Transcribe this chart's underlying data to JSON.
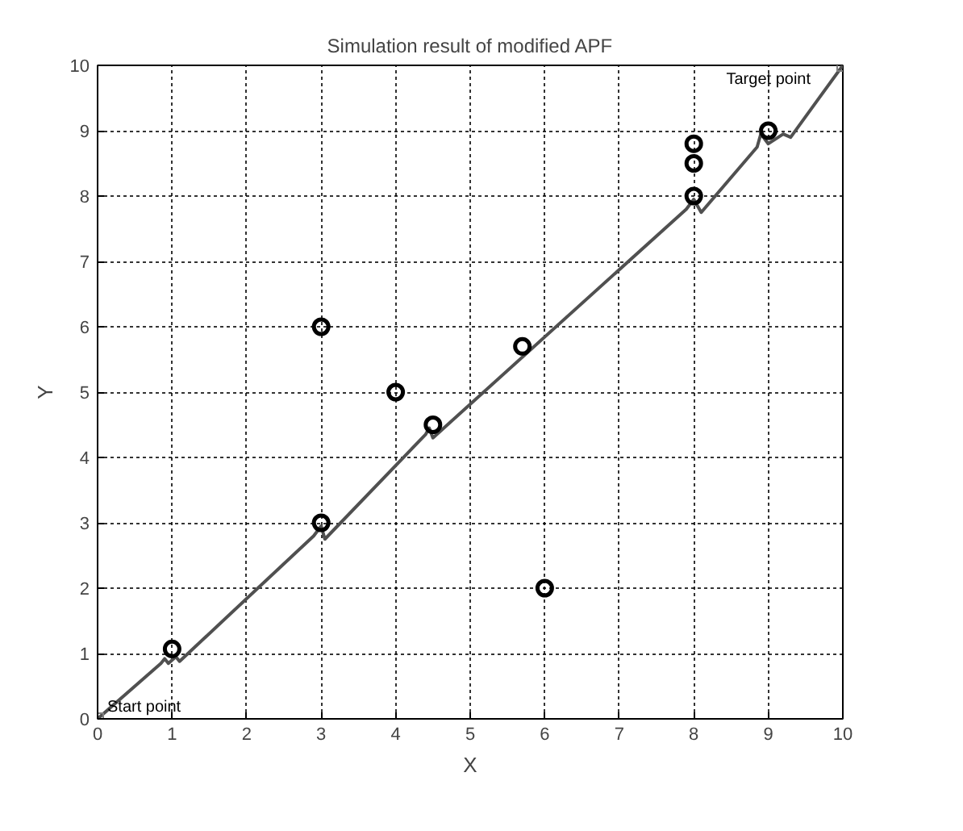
{
  "chart_data": {
    "type": "line",
    "title": "Simulation result of modified APF",
    "xlabel": "X",
    "ylabel": "Y",
    "xlim": [
      0,
      10
    ],
    "ylim": [
      0,
      10
    ],
    "xticks": [
      0,
      1,
      2,
      3,
      4,
      5,
      6,
      7,
      8,
      9,
      10
    ],
    "yticks": [
      0,
      1,
      2,
      3,
      4,
      5,
      6,
      7,
      8,
      9,
      10
    ],
    "grid": true,
    "series": [
      {
        "color": "#505050",
        "marker": "none",
        "x": [
          0,
          0.85,
          0.9,
          0.95,
          1.05,
          1.1,
          2.9,
          3.0,
          3.05,
          4.4,
          4.45,
          4.5,
          7.9,
          8.0,
          8.1,
          8.85,
          8.9,
          9.0,
          9.2,
          9.3,
          10
        ],
        "values": [
          0,
          0.85,
          0.92,
          0.85,
          0.95,
          0.88,
          2.8,
          2.95,
          2.75,
          4.35,
          4.45,
          4.3,
          7.8,
          7.95,
          7.75,
          8.75,
          8.95,
          8.8,
          8.95,
          8.9,
          10
        ]
      },
      {
        "type": "scatter",
        "color": "#000000",
        "marker": "circle",
        "x": [
          1,
          3,
          3,
          4,
          4.5,
          5.7,
          6,
          8,
          8,
          8,
          9
        ],
        "values": [
          1.07,
          6,
          3,
          5,
          4.5,
          5.7,
          2,
          8.8,
          8.5,
          8,
          9
        ]
      }
    ],
    "annotations": [
      {
        "text": "Start point",
        "x": 0,
        "y": 0
      },
      {
        "text": "Target point",
        "x": 10,
        "y": 10
      }
    ]
  }
}
